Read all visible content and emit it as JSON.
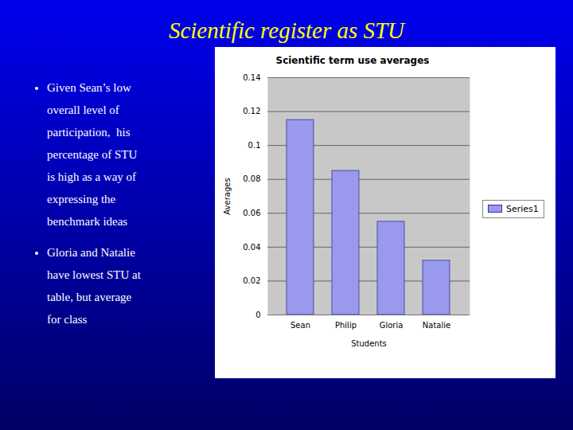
{
  "chart_data": {
    "type": "bar",
    "title": "Scientific register as STU",
    "subtitle": "Scientific term use averages",
    "annotations": [
      [
        "Given Sean’s low",
        "overall level of",
        "participation,  his",
        "percentage of STU",
        "is high as a way of",
        "expressing the",
        "benchmark ideas"
      ],
      [
        "Gloria and Natalie",
        "have lowest STU at",
        "table, but average",
        "for class"
      ]
    ],
    "categories": [
      "Sean",
      "Philip",
      "Gloria",
      "Natalie"
    ],
    "series": [
      {
        "name": "Series1",
        "color": "#9999EE",
        "values": [
          0.115,
          0.085,
          0.055,
          0.032
        ]
      }
    ],
    "xlabel": "Students",
    "ylabel": "Averages",
    "ylim": [
      0,
      0.14
    ],
    "yticks": [
      0,
      0.02,
      0.04,
      0.06,
      0.08,
      0.1,
      0.12,
      0.14
    ],
    "grid": true,
    "legend": "right"
  }
}
